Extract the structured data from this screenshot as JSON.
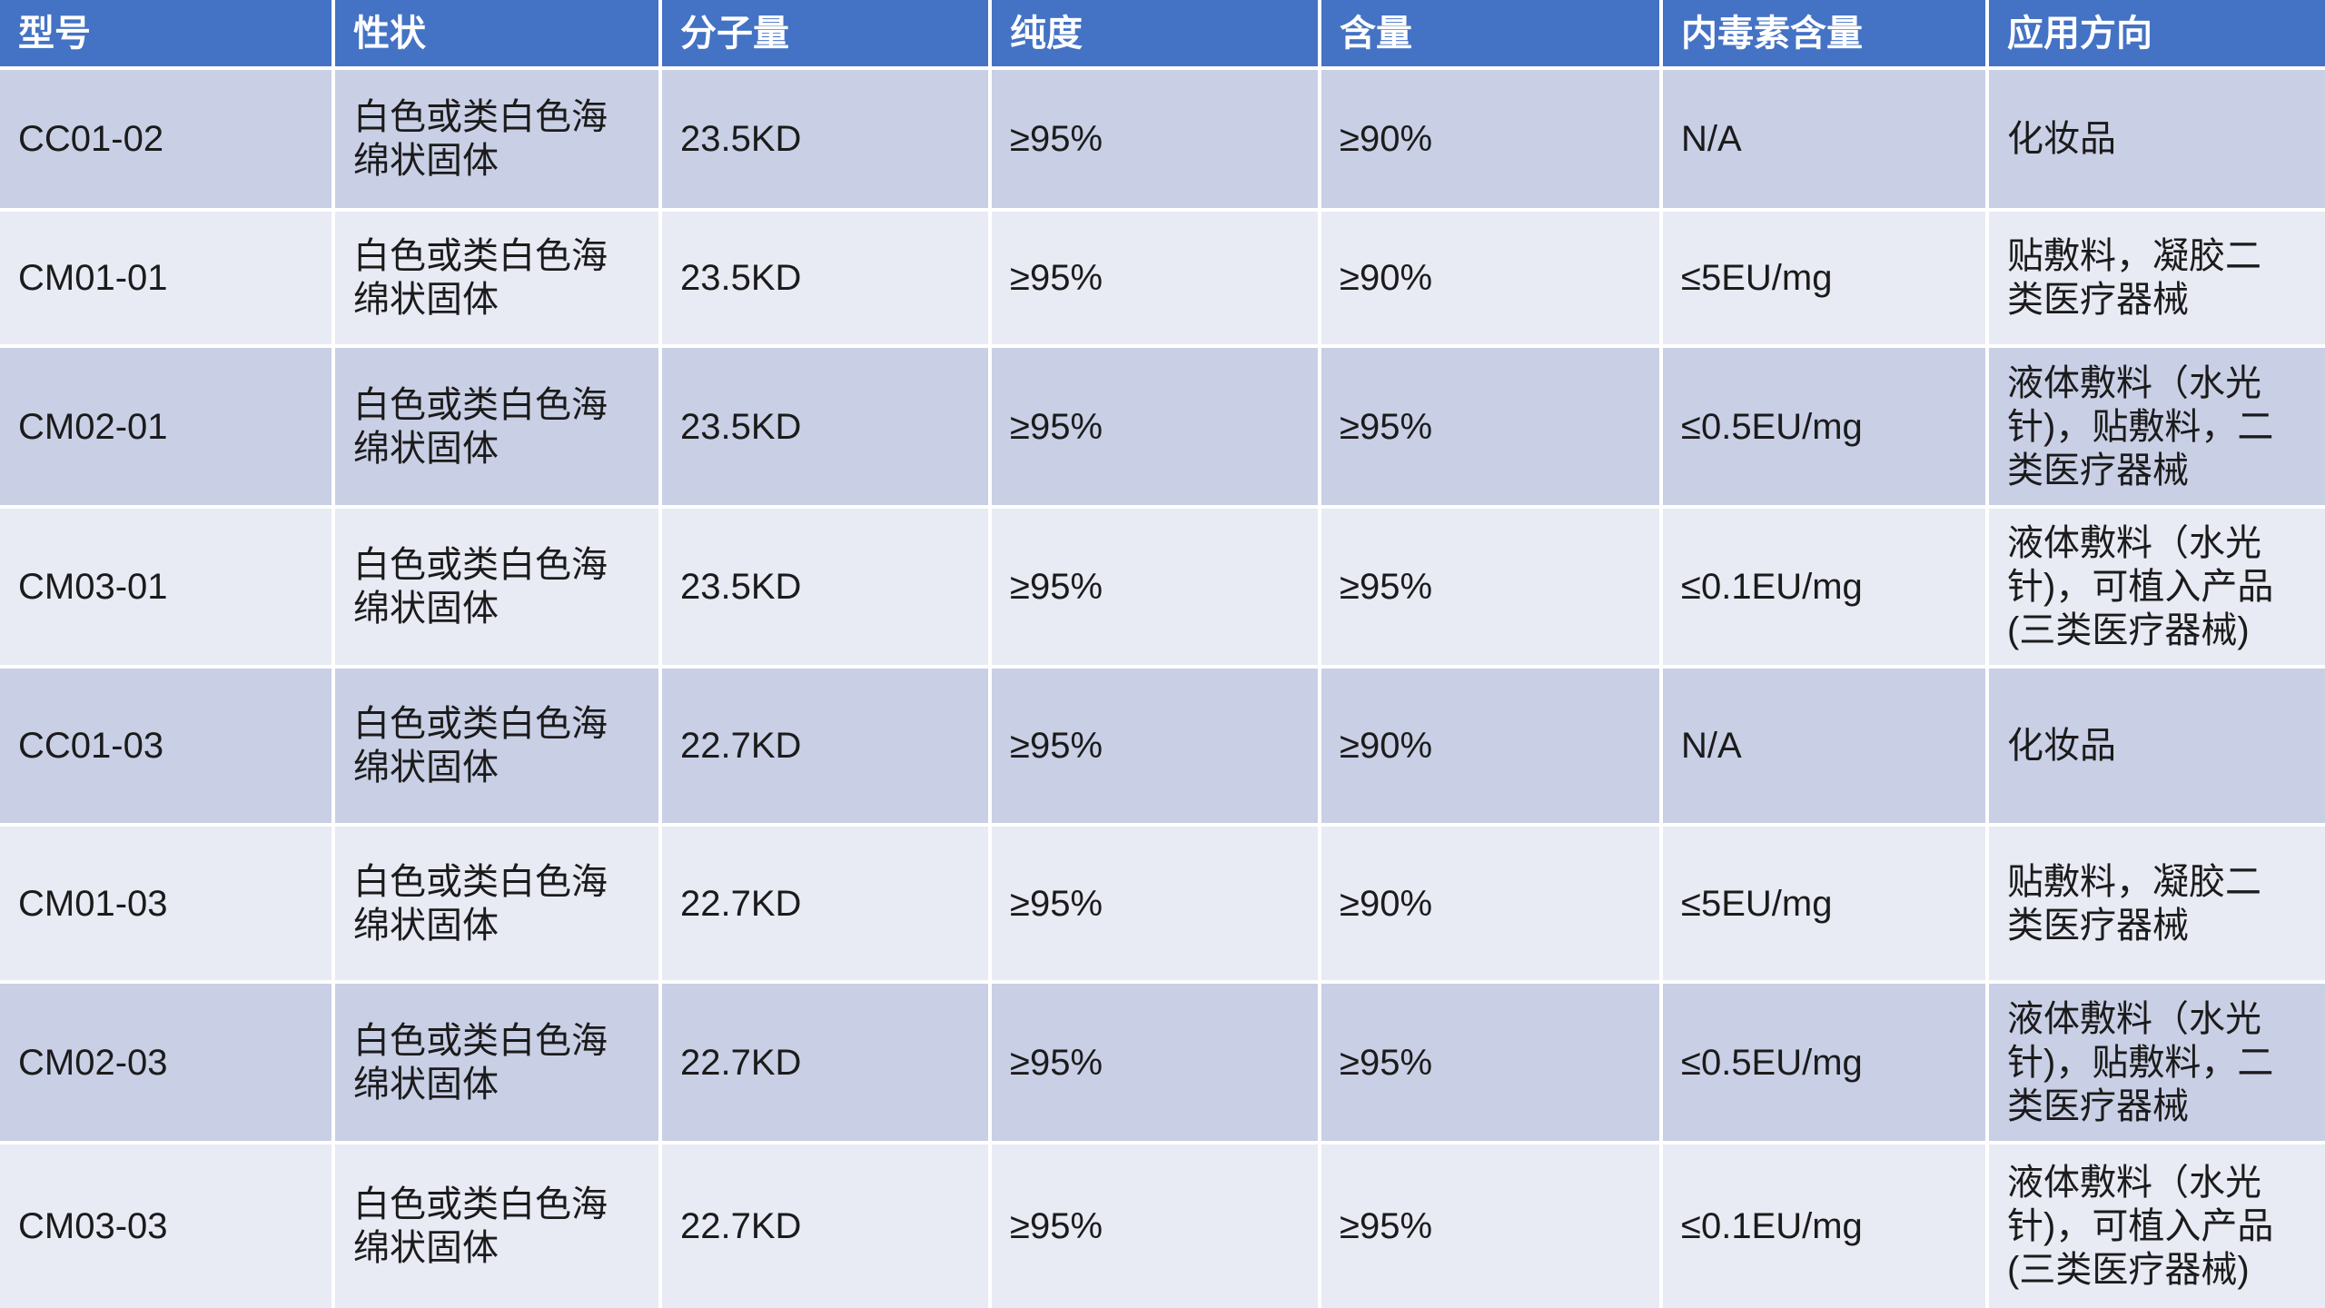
{
  "table": {
    "headers": [
      "型号",
      "性状",
      "分子量",
      "纯度",
      "含量",
      "内毒素含量",
      "应用方向"
    ],
    "rows": [
      {
        "model": "CC01-02",
        "appearance": "白色或类白色海\n绵状固体",
        "molecular_weight": "23.5KD",
        "purity": "≥95%",
        "content": "≥90%",
        "endotoxin": "N/A",
        "application": "化妆品"
      },
      {
        "model": "CM01-01",
        "appearance": "白色或类白色海\n绵状固体",
        "molecular_weight": "23.5KD",
        "purity": "≥95%",
        "content": "≥90%",
        "endotoxin": "≤5EU/mg",
        "application": "贴敷料，凝胶二\n类医疗器械"
      },
      {
        "model": "CM02-01",
        "appearance": "白色或类白色海\n绵状固体",
        "molecular_weight": "23.5KD",
        "purity": "≥95%",
        "content": "≥95%",
        "endotoxin": "≤0.5EU/mg",
        "application": "液体敷料（水光\n针)，贴敷料，二\n类医疗器械"
      },
      {
        "model": "CM03-01",
        "appearance": "白色或类白色海\n绵状固体",
        "molecular_weight": "23.5KD",
        "purity": "≥95%",
        "content": "≥95%",
        "endotoxin": "≤0.1EU/mg",
        "application": "液体敷料（水光\n针)，可植入产品\n(三类医疗器械)"
      },
      {
        "model": "CC01-03",
        "appearance": "白色或类白色海\n绵状固体",
        "molecular_weight": "22.7KD",
        "purity": "≥95%",
        "content": "≥90%",
        "endotoxin": "N/A",
        "application": "化妆品"
      },
      {
        "model": "CM01-03",
        "appearance": "白色或类白色海\n绵状固体",
        "molecular_weight": "22.7KD",
        "purity": "≥95%",
        "content": "≥90%",
        "endotoxin": "≤5EU/mg",
        "application": "贴敷料，凝胶二\n类医疗器械"
      },
      {
        "model": "CM02-03",
        "appearance": "白色或类白色海\n绵状固体",
        "molecular_weight": "22.7KD",
        "purity": "≥95%",
        "content": "≥95%",
        "endotoxin": "≤0.5EU/mg",
        "application": "液体敷料（水光\n针)，贴敷料，二\n类医疗器械"
      },
      {
        "model": "CM03-03",
        "appearance": "白色或类白色海\n绵状固体",
        "molecular_weight": "22.7KD",
        "purity": "≥95%",
        "content": "≥95%",
        "endotoxin": "≤0.1EU/mg",
        "application": "液体敷料（水光\n针)，可植入产品\n(三类医疗器械)"
      }
    ]
  },
  "colors": {
    "header_bg": "#4472C4",
    "header_text": "#FFFFFF",
    "row_dark": "#C9CFE5",
    "row_light": "#E8EAF4",
    "grid_line": "#FFFFFF",
    "body_text": "#1B1B1B"
  }
}
